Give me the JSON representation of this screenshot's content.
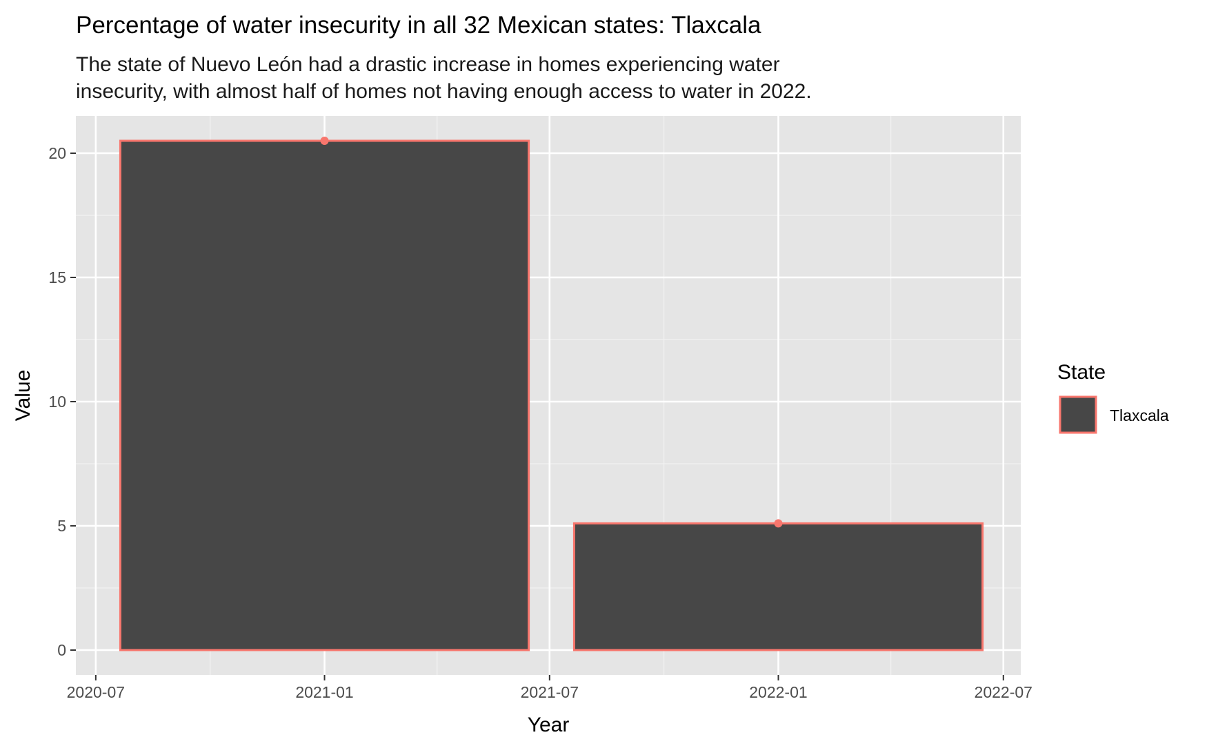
{
  "chart_data": {
    "type": "bar",
    "title": "Percentage of water insecurity in all 32 Mexican states: Tlaxcala",
    "subtitle_lines": [
      "The state of Nuevo León had a drastic increase in homes experiencing water",
      "insecurity, with almost half of homes not having enough access to water in 2022."
    ],
    "xlabel": "Year",
    "ylabel": "Value",
    "x_ticks": [
      {
        "label": "2020-07",
        "date": "2020-07-01"
      },
      {
        "label": "2021-01",
        "date": "2021-01-01"
      },
      {
        "label": "2021-07",
        "date": "2021-07-01"
      },
      {
        "label": "2022-01",
        "date": "2022-01-01"
      },
      {
        "label": "2022-07",
        "date": "2022-07-01"
      }
    ],
    "xlim": [
      "2020-06-15",
      "2022-07-15"
    ],
    "y_ticks": [
      0,
      5,
      10,
      15,
      20
    ],
    "ylim": [
      -1,
      21.5
    ],
    "grid": true,
    "legend": {
      "title": "State",
      "position": "right"
    },
    "series": [
      {
        "name": "Tlaxcala",
        "fill": "#474747",
        "outline": "#f8766d",
        "points": [
          {
            "x": "2021-01-01",
            "y": 20.5
          },
          {
            "x": "2022-01-01",
            "y": 5.1
          }
        ]
      }
    ]
  }
}
